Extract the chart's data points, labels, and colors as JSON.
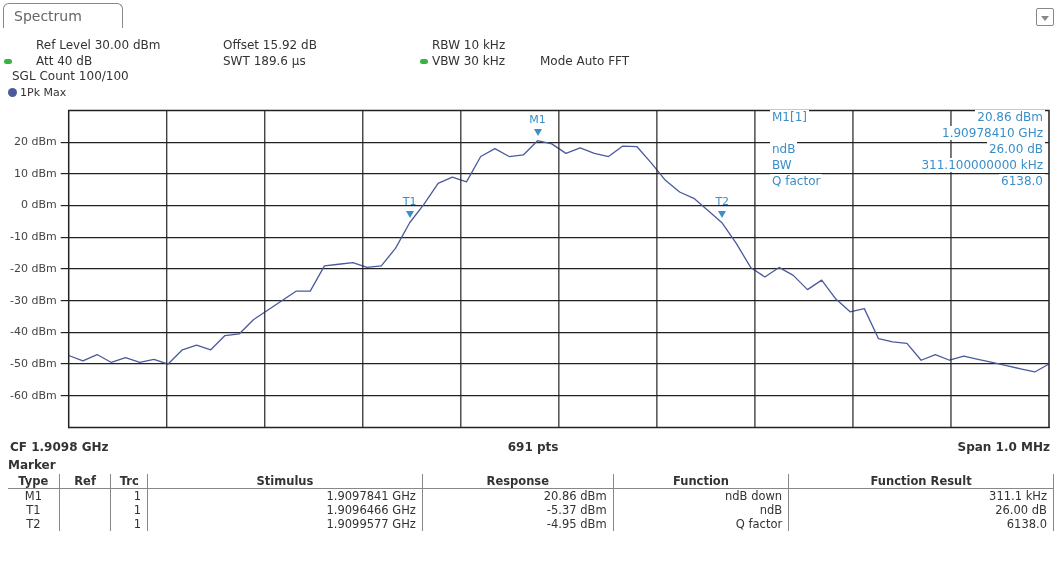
{
  "chart_data": {
    "type": "line",
    "title": "Spectrum",
    "categories": [
      null,
      null,
      null,
      null,
      null,
      null,
      null,
      null,
      null,
      null,
      null,
      null,
      null,
      null,
      null,
      null,
      null,
      null,
      null,
      null,
      null,
      null,
      null,
      null,
      null,
      null,
      null,
      null,
      null,
      null,
      null,
      null,
      null,
      null,
      null,
      null,
      null,
      null,
      null,
      null,
      null,
      null,
      null,
      null,
      null,
      null,
      null,
      null,
      null,
      null,
      null,
      null,
      null,
      null,
      null,
      null,
      null,
      null,
      null,
      null,
      null,
      null,
      null,
      null,
      null,
      null,
      null,
      null,
      null,
      null
    ],
    "series": [
      {
        "name": "1Pk Max",
        "color": "#4b5a9c",
        "values": [
          -47.3,
          -49,
          -47,
          -49.5,
          -48,
          -49.5,
          -48.5,
          -50,
          -45.5,
          -44,
          -45.5,
          -41,
          -40.5,
          -36,
          -33,
          -30,
          -27,
          -27,
          -19,
          -18.5,
          -18,
          -19.5,
          -19,
          -13.5,
          -5.4,
          0.4,
          7,
          9,
          7.5,
          15.5,
          18,
          15.5,
          16,
          20.5,
          19.5,
          16.5,
          18.2,
          16.5,
          15.5,
          18.8,
          18.6,
          13.5,
          8,
          4.3,
          2.3,
          -1.5,
          -5.5,
          -12,
          -19.5,
          -22.5,
          -19.5,
          -22,
          -26.5,
          -23.5,
          -29.5,
          -33.5,
          -32.5,
          -42,
          -43,
          -43.5,
          -48.8,
          -47,
          -48.8,
          -47.5,
          -48.5,
          -49.5,
          -50.5,
          -51.5,
          -52.5,
          -50
        ]
      }
    ],
    "ylim": [
      -70,
      30
    ],
    "yticks": [
      {
        "value": -60,
        "label": "-60 dBm"
      },
      {
        "value": -50,
        "label": "-50 dBm"
      },
      {
        "value": -40,
        "label": "-40 dBm"
      },
      {
        "value": -30,
        "label": "-30 dBm"
      },
      {
        "value": -20,
        "label": "-20 dBm"
      },
      {
        "value": -10,
        "label": "-10 dBm"
      },
      {
        "value": 0,
        "label": "0 dBm"
      },
      {
        "value": 10,
        "label": "10 dBm"
      },
      {
        "value": 20,
        "label": "20 dBm"
      }
    ],
    "tick_labels": "y",
    "grid": true,
    "legend": "top left",
    "marker": "none",
    "line_style": "solid",
    "annotations": [
      "Ref Level 30.00 dBm",
      "Offset 15.92 dB",
      "RBW 10 kHz",
      "Att 40 dB",
      "SWT 189.6 µs",
      "VBW 30 kHz",
      "Mode Auto FFT",
      "SGL Count 100/100",
      "M1",
      "T1",
      "T2",
      "M1[1]",
      "20.86 dBm",
      "1.90978410 GHz",
      "ndB",
      "26.00 dB",
      "BW",
      "311.100000000 kHz",
      "Q factor",
      "6138.0",
      "CF 1.9098 GHz",
      "691 pts",
      "Span 1.0 MHz",
      "Marker",
      "Type",
      "Ref",
      "Trc",
      "Stimulus",
      "Response",
      "Function",
      "Function Result",
      "M1",
      "1",
      "1.9097841 GHz",
      "20.86 dBm",
      "ndB down",
      "311.1 kHz",
      "T1",
      "1",
      "1.9096466 GHz",
      "-5.37 dBm",
      "ndB",
      "26.00 dB",
      "T2",
      "1",
      "1.9099577 GHz",
      "-4.95 dBm",
      "Q factor",
      "6138.0"
    ]
  }
}
